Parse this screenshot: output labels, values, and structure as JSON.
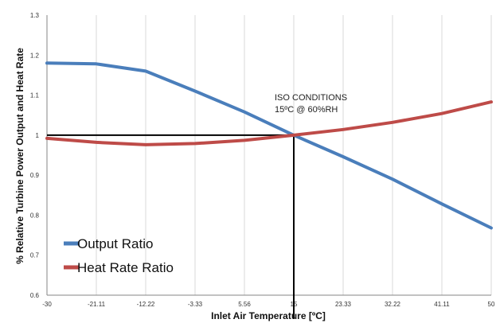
{
  "chart_data": {
    "type": "line",
    "xlabel": "Inlet Air Temperature  [ºC]",
    "ylabel": "% Relative  Turbine Power Output and Heat Rate",
    "x": [
      -30,
      -21.11,
      -12.22,
      -3.33,
      5.56,
      15,
      23.33,
      32.22,
      41.11,
      50
    ],
    "x_tick_labels": [
      "-30",
      "-21.11",
      "-12.22",
      "-3.33",
      "5.56",
      "15",
      "23.33",
      "32.22",
      "41.11",
      "50"
    ],
    "y_ticks": [
      0.6,
      0.7,
      0.8,
      0.9,
      1,
      1.1,
      1.2,
      1.3
    ],
    "y_tick_labels": [
      "0.6",
      "0.7",
      "0.8",
      "0.9",
      "1",
      "1.1",
      "1.2",
      "1.3"
    ],
    "ylim": [
      0.6,
      1.3
    ],
    "grid": "vertical",
    "legend_position": "bottom-left",
    "series": [
      {
        "name": "Output Ratio",
        "color": "#4a7ebb",
        "values": [
          1.18,
          1.178,
          1.16,
          1.11,
          1.058,
          1.0,
          0.946,
          0.89,
          0.828,
          0.768
        ]
      },
      {
        "name": "Heat Rate Ratio",
        "color": "#be4b48",
        "values": [
          0.992,
          0.982,
          0.976,
          0.979,
          0.987,
          1.0,
          1.014,
          1.032,
          1.054,
          1.083
        ]
      }
    ],
    "reference_lines": {
      "horizontal_y": 1.0,
      "vertical_x": 15,
      "color": "#000000"
    },
    "annotation": {
      "line1": "ISO CONDITIONS",
      "line2": "15ºC @ 60%RH"
    }
  }
}
